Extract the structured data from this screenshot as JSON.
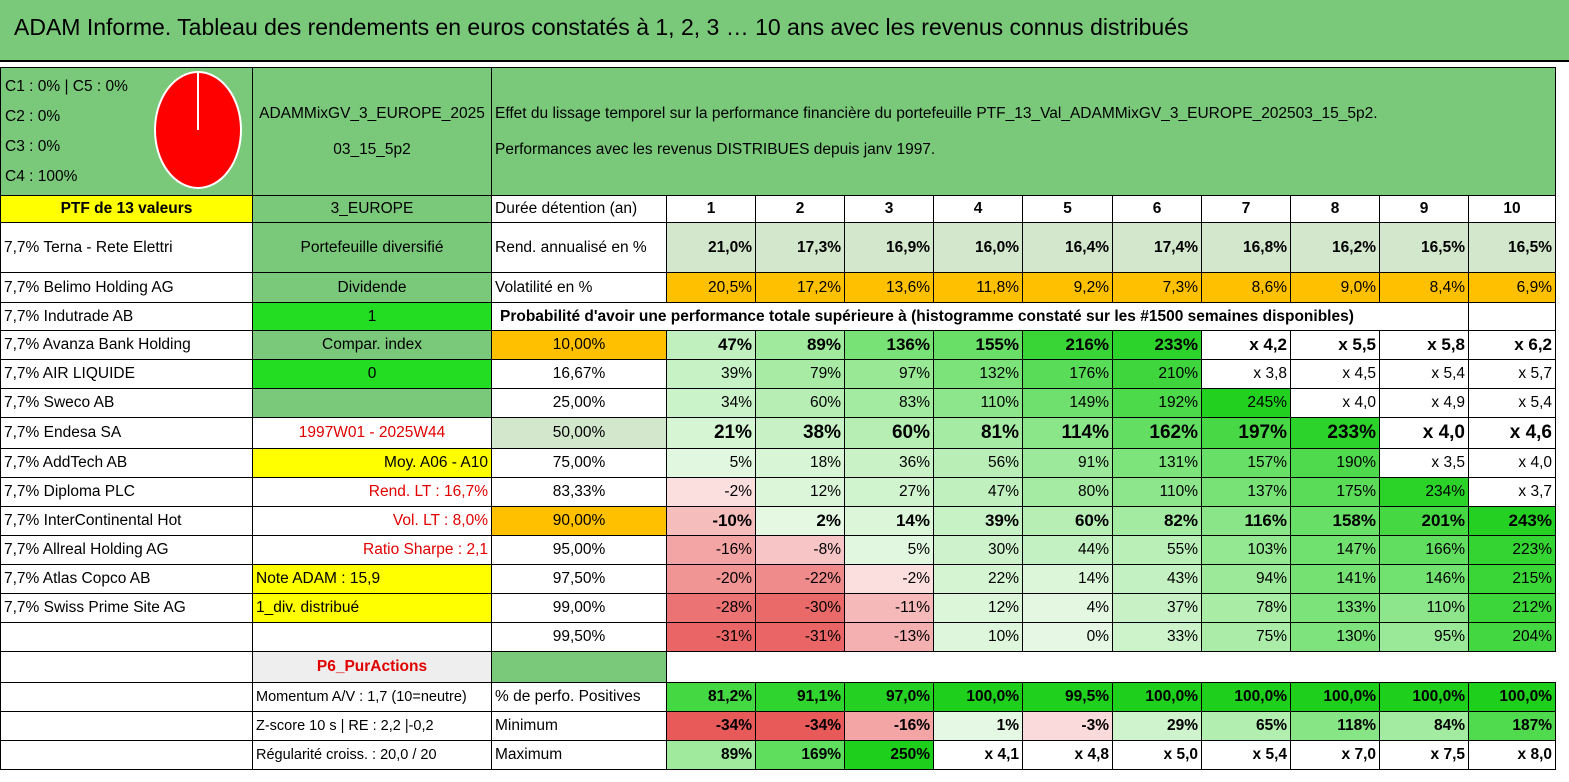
{
  "title": "ADAM Informe. Tableau des rendements en euros constatés à 1, 2, 3 … 10 ans avec les revenus connus distribués",
  "pie": {
    "legend": [
      "C1 : 0% | C5 : 0%",
      "C2 : 0%",
      "C3 : 0%",
      "C4 : 100%"
    ],
    "slices": [
      {
        "label": "C4",
        "value": 100,
        "color": "#ff0000"
      }
    ]
  },
  "portfolio_code": "ADAMMixGV_3_EUROPE_202503_15_5p2",
  "description": {
    "line1": "Effet du lissage temporel sur la performance financière du portefeuille PTF_13_Val_ADAMMixGV_3_EUROPE_202503_15_5p2.",
    "line2": "Performances avec les revenus DISTRIBUES depuis janv 1997."
  },
  "ptf_label": "PTF de 13 valeurs",
  "zone": "3_EUROPE",
  "duration_label": "Durée détention (an)",
  "years": [
    "1",
    "2",
    "3",
    "4",
    "5",
    "6",
    "7",
    "8",
    "9",
    "10"
  ],
  "holdings": [
    "7,7% Terna - Rete Elettri",
    "7,7% Belimo Holding AG",
    "7,7% Indutrade AB",
    "7,7% Avanza Bank Holding",
    "7,7% AIR LIQUIDE",
    "7,7% Sweco AB",
    "7,7% Endesa SA",
    "7,7% AddTech AB",
    "7,7% Diploma PLC",
    "7,7% InterContinental Hot",
    "7,7% Allreal Holding AG",
    "7,7% Atlas Copco AB",
    "7,7% Swiss Prime Site AG"
  ],
  "side": {
    "diversified": "Portefeuille diversifié",
    "dividend": "Dividende",
    "dividend_value": "1",
    "compar_index": "Compar. index",
    "compar_value": "0",
    "period": "1997W01 - 2025W44",
    "moy": "Moy. A06 - A10",
    "rend_lt": "Rend. LT : 16,7%",
    "vol_lt": "Vol. LT : 8,0%",
    "sharpe": "Ratio Sharpe : 2,1",
    "note": "Note ADAM : 15,9",
    "div": "1_div. distribué",
    "p6": "P6_PurActions",
    "momentum": "Momentum A/V : 1,7 (10=neutre)",
    "zscore": "Z-score 10 s | RE : 2,2 |-0,2",
    "regularite": "Régularité croiss. : 20,0 / 20"
  },
  "rend": {
    "label": "Rend. annualisé en %",
    "values": [
      "21,0%",
      "17,3%",
      "16,9%",
      "16,0%",
      "16,4%",
      "17,4%",
      "16,8%",
      "16,2%",
      "16,5%",
      "16,5%"
    ]
  },
  "vol": {
    "label": "Volatilité en %",
    "values": [
      "20,5%",
      "17,2%",
      "13,6%",
      "11,8%",
      "9,2%",
      "7,3%",
      "8,6%",
      "9,0%",
      "8,4%",
      "6,9%"
    ]
  },
  "prob_title": "Probabilité d'avoir une performance totale supérieure à (histogramme constaté sur les #1500 semaines disponibles)",
  "prob_rows": [
    {
      "p": "10,00%",
      "v": [
        "47%",
        "89%",
        "136%",
        "155%",
        "216%",
        "233%",
        "x 4,2",
        "x 5,5",
        "x 5,8",
        "x 6,2"
      ]
    },
    {
      "p": "16,67%",
      "v": [
        "39%",
        "79%",
        "97%",
        "132%",
        "176%",
        "210%",
        "x 3,8",
        "x 4,5",
        "x 5,4",
        "x 5,7"
      ]
    },
    {
      "p": "25,00%",
      "v": [
        "34%",
        "60%",
        "83%",
        "110%",
        "149%",
        "192%",
        "245%",
        "x 4,0",
        "x 4,9",
        "x 5,4"
      ]
    },
    {
      "p": "50,00%",
      "v": [
        "21%",
        "38%",
        "60%",
        "81%",
        "114%",
        "162%",
        "197%",
        "233%",
        "x 4,0",
        "x 4,6"
      ]
    },
    {
      "p": "75,00%",
      "v": [
        "5%",
        "18%",
        "36%",
        "56%",
        "91%",
        "131%",
        "157%",
        "190%",
        "x 3,5",
        "x 4,0"
      ]
    },
    {
      "p": "83,33%",
      "v": [
        "-2%",
        "12%",
        "27%",
        "47%",
        "80%",
        "110%",
        "137%",
        "175%",
        "234%",
        "x 3,7"
      ]
    },
    {
      "p": "90,00%",
      "v": [
        "-10%",
        "2%",
        "14%",
        "39%",
        "60%",
        "82%",
        "116%",
        "158%",
        "201%",
        "243%"
      ]
    },
    {
      "p": "95,00%",
      "v": [
        "-16%",
        "-8%",
        "5%",
        "30%",
        "44%",
        "55%",
        "103%",
        "147%",
        "166%",
        "223%"
      ]
    },
    {
      "p": "97,50%",
      "v": [
        "-20%",
        "-22%",
        "-2%",
        "22%",
        "14%",
        "43%",
        "94%",
        "141%",
        "146%",
        "215%"
      ]
    },
    {
      "p": "99,00%",
      "v": [
        "-28%",
        "-30%",
        "-11%",
        "12%",
        "4%",
        "37%",
        "78%",
        "133%",
        "110%",
        "212%"
      ]
    },
    {
      "p": "99,50%",
      "v": [
        "-31%",
        "-31%",
        "-13%",
        "10%",
        "0%",
        "33%",
        "75%",
        "130%",
        "95%",
        "204%"
      ]
    }
  ],
  "positives": {
    "label": "% de perfo. Positives",
    "values": [
      "81,2%",
      "91,1%",
      "97,0%",
      "100,0%",
      "99,5%",
      "100,0%",
      "100,0%",
      "100,0%",
      "100,0%",
      "100,0%"
    ]
  },
  "minimum": {
    "label": "Minimum",
    "values": [
      "-34%",
      "-34%",
      "-16%",
      "1%",
      "-3%",
      "29%",
      "65%",
      "118%",
      "84%",
      "187%"
    ]
  },
  "maximum": {
    "label": "Maximum",
    "values": [
      "89%",
      "169%",
      "250%",
      "x 4,1",
      "x 4,8",
      "x 5,0",
      "x 5,4",
      "x 7,0",
      "x 7,5",
      "x 8,0"
    ]
  },
  "colors": {
    "header_green": "#7ac87a",
    "yellow": "#ffff00",
    "lime": "#22dd22",
    "orange": "#ffc000",
    "light_green": "#d3e7cc"
  }
}
